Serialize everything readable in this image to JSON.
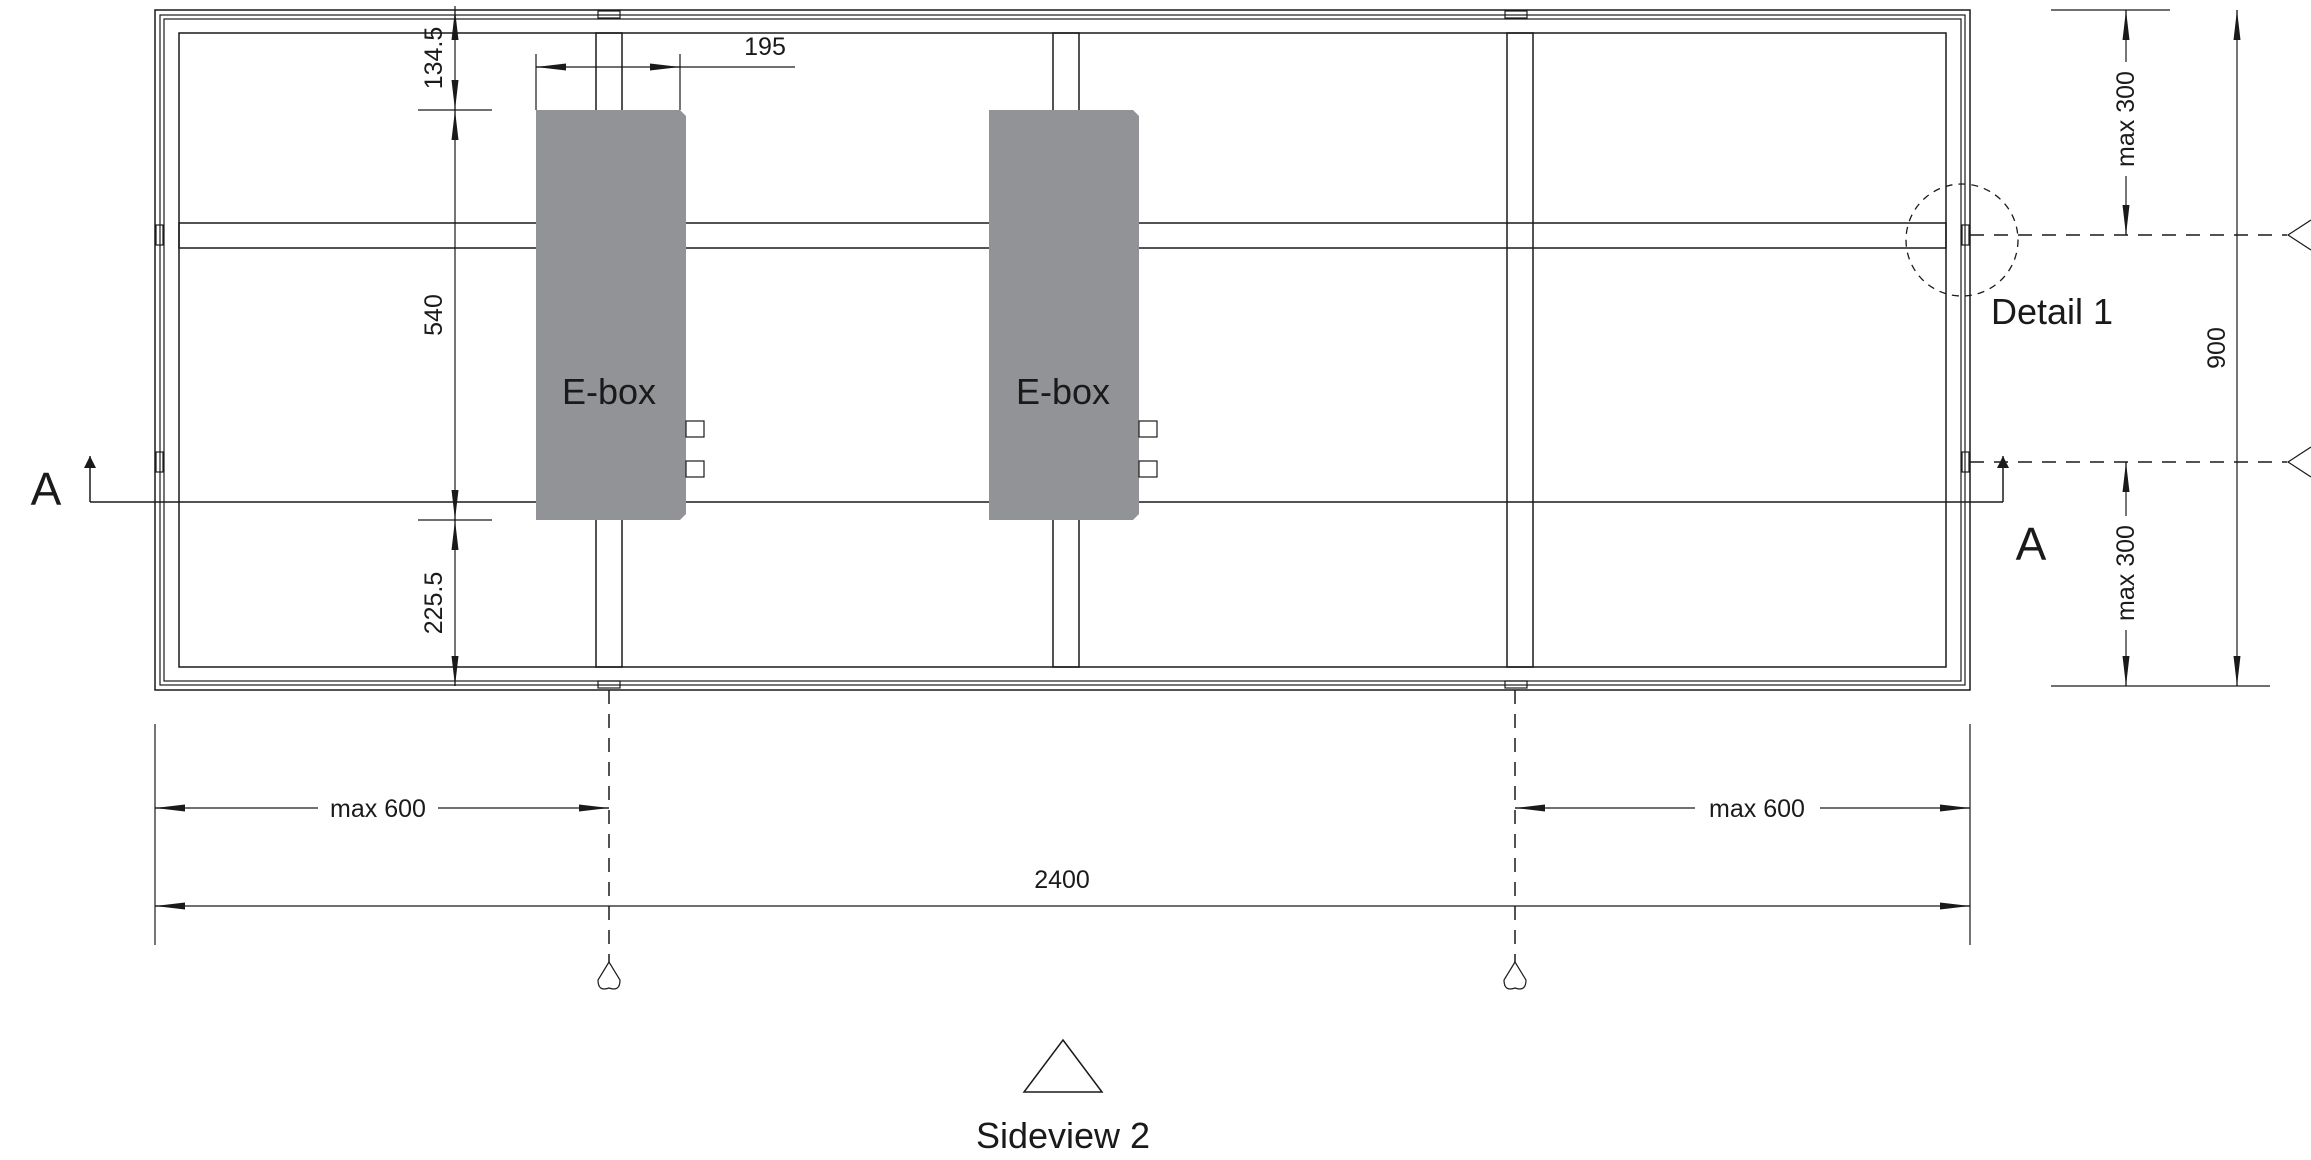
{
  "drawing": {
    "labels": {
      "ebox_left": "E-box",
      "ebox_right": "E-box",
      "section_left": "A",
      "section_right": "A",
      "detail": "Detail 1",
      "sideview": "Sideview 2"
    },
    "dimensions": {
      "top_offset": "134.5",
      "ebox_length": "540",
      "bottom_offset": "225.5",
      "ebox_width": "195",
      "total_width": "2400",
      "total_height": "900",
      "max_left": "max 600",
      "max_right": "max 600",
      "max_top": "max 300",
      "max_bottom": "max 300"
    }
  }
}
